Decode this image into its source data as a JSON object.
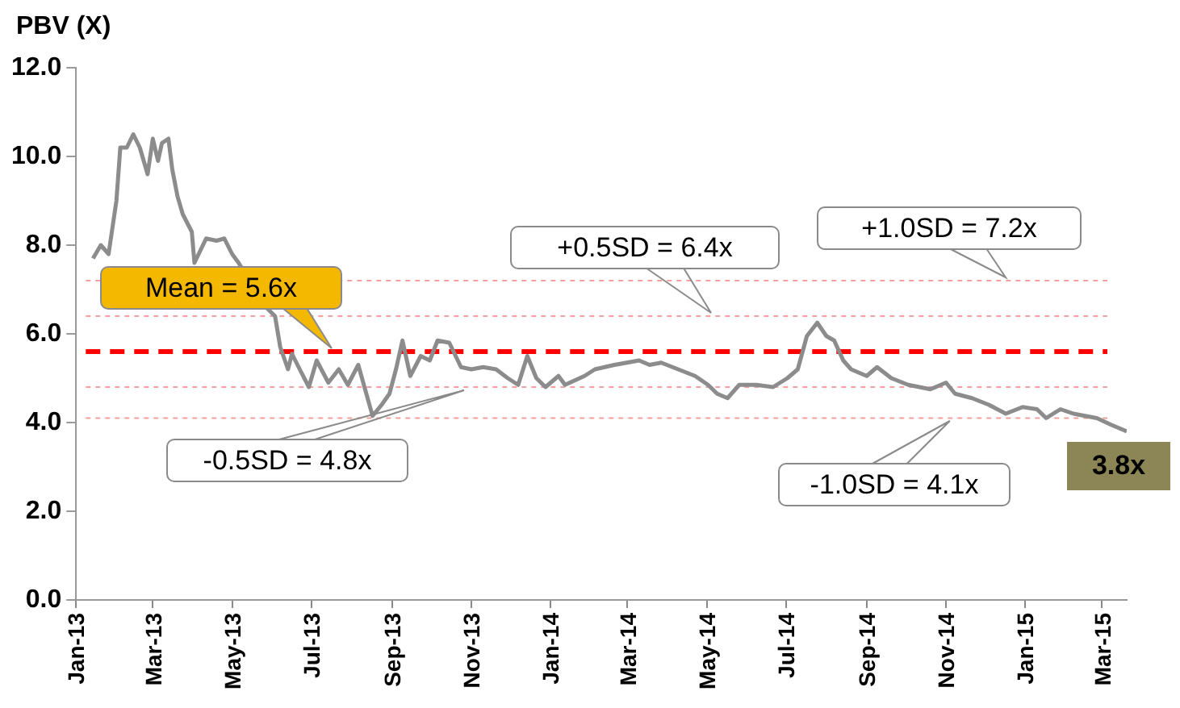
{
  "chart_data": {
    "type": "line",
    "ylabel": "PBV (X)",
    "x": [
      "2013-01-14",
      "2013-01-20",
      "2013-01-26",
      "2013-02-01",
      "2013-02-04",
      "2013-02-09",
      "2013-02-14",
      "2013-02-19",
      "2013-02-25",
      "2013-03-01",
      "2013-03-05",
      "2013-03-08",
      "2013-03-13",
      "2013-03-16",
      "2013-03-20",
      "2013-03-24",
      "2013-03-31",
      "2013-04-02",
      "2013-04-11",
      "2013-04-19",
      "2013-04-25",
      "2013-05-01",
      "2013-05-06",
      "2013-05-27",
      "2013-06-03",
      "2013-06-07",
      "2013-06-13",
      "2013-06-16",
      "2013-06-22",
      "2013-06-29",
      "2013-07-05",
      "2013-07-14",
      "2013-07-22",
      "2013-07-29",
      "2013-08-06",
      "2013-08-17",
      "2013-08-24",
      "2013-08-30",
      "2013-09-04",
      "2013-09-09",
      "2013-09-15",
      "2013-09-23",
      "2013-09-30",
      "2013-10-06",
      "2013-10-15",
      "2013-10-24",
      "2013-11-01",
      "2013-11-10",
      "2013-11-20",
      "2013-11-29",
      "2013-12-07",
      "2013-12-14",
      "2013-12-21",
      "2013-12-28",
      "2014-01-07",
      "2014-01-12",
      "2014-01-27",
      "2014-02-04",
      "2014-02-19",
      "2014-03-10",
      "2014-03-18",
      "2014-03-27",
      "2014-04-09",
      "2014-04-22",
      "2014-05-02",
      "2014-05-09",
      "2014-05-17",
      "2014-05-26",
      "2014-06-08",
      "2014-06-21",
      "2014-07-02",
      "2014-07-10",
      "2014-07-17",
      "2014-07-25",
      "2014-08-01",
      "2014-08-07",
      "2014-08-14",
      "2014-08-20",
      "2014-09-01",
      "2014-09-09",
      "2014-09-20",
      "2014-10-03",
      "2014-10-20",
      "2014-11-01",
      "2014-11-08",
      "2014-11-21",
      "2014-12-04",
      "2014-12-17",
      "2014-12-30",
      "2015-01-10",
      "2015-01-17",
      "2015-01-28",
      "2015-02-07",
      "2015-02-25",
      "2015-03-08",
      "2015-03-20"
    ],
    "series": [
      {
        "color": "#8c8c8c",
        "values": [
          7.7,
          8.0,
          7.8,
          9.0,
          10.2,
          10.2,
          10.5,
          10.2,
          9.6,
          10.4,
          9.9,
          10.3,
          10.4,
          9.7,
          9.1,
          8.7,
          8.3,
          7.6,
          8.15,
          8.1,
          8.15,
          7.8,
          7.6,
          6.6,
          6.4,
          5.7,
          5.2,
          5.55,
          5.2,
          4.8,
          5.4,
          4.9,
          5.2,
          4.85,
          5.3,
          4.15,
          4.4,
          4.65,
          5.2,
          5.85,
          5.05,
          5.5,
          5.4,
          5.85,
          5.8,
          5.25,
          5.2,
          5.25,
          5.2,
          5.0,
          4.85,
          5.5,
          5.0,
          4.8,
          5.05,
          4.85,
          5.05,
          5.2,
          5.3,
          5.4,
          5.3,
          5.35,
          5.2,
          5.05,
          4.85,
          4.65,
          4.55,
          4.85,
          4.85,
          4.8,
          5.0,
          5.2,
          5.95,
          6.25,
          5.95,
          5.85,
          5.4,
          5.2,
          5.05,
          5.25,
          5.0,
          4.85,
          4.75,
          4.9,
          4.65,
          4.55,
          4.4,
          4.2,
          4.35,
          4.3,
          4.1,
          4.3,
          4.2,
          4.1,
          3.95,
          3.8
        ]
      }
    ],
    "xlim": [
      "2013-01-01",
      "2015-03-20"
    ],
    "xticks": [
      {
        "value": "2013-01-01",
        "label": "Jan-13"
      },
      {
        "value": "2013-03-01",
        "label": "Mar-13"
      },
      {
        "value": "2013-05-01",
        "label": "May-13"
      },
      {
        "value": "2013-07-01",
        "label": "Jul-13"
      },
      {
        "value": "2013-09-01",
        "label": "Sep-13"
      },
      {
        "value": "2013-11-01",
        "label": "Nov-13"
      },
      {
        "value": "2014-01-01",
        "label": "Jan-14"
      },
      {
        "value": "2014-03-01",
        "label": "Mar-14"
      },
      {
        "value": "2014-05-01",
        "label": "May-14"
      },
      {
        "value": "2014-07-01",
        "label": "Jul-14"
      },
      {
        "value": "2014-09-01",
        "label": "Sep-14"
      },
      {
        "value": "2014-11-01",
        "label": "Nov-14"
      },
      {
        "value": "2015-01-01",
        "label": "Jan-15"
      },
      {
        "value": "2015-03-01",
        "label": "Mar-15"
      }
    ],
    "ylim": [
      0,
      12
    ],
    "yticks": [
      {
        "value": 0,
        "label": "0.0"
      },
      {
        "value": 2,
        "label": "2.0"
      },
      {
        "value": 4,
        "label": "4.0"
      },
      {
        "value": 6,
        "label": "6.0"
      },
      {
        "value": 8,
        "label": "8.0"
      },
      {
        "value": 10,
        "label": "10.0"
      },
      {
        "value": 12,
        "label": "12.0"
      }
    ],
    "ref_lines": [
      {
        "axis": "y",
        "value": 5.6,
        "label": "Mean = 5.6x",
        "color": "#ff0000",
        "line_style": "dashed"
      },
      {
        "axis": "y",
        "value": 6.4,
        "label": "+0.5SD = 6.4x",
        "color": "#f4a0a0",
        "line_style": "dotted"
      },
      {
        "axis": "y",
        "value": 7.2,
        "label": "+1.0SD = 7.2x",
        "color": "#f4a0a0",
        "line_style": "dotted"
      },
      {
        "axis": "y",
        "value": 4.8,
        "label": "-0.5SD = 4.8x",
        "color": "#f4a0a0",
        "line_style": "dotted"
      },
      {
        "axis": "y",
        "value": 4.1,
        "label": "-1.0SD = 4.1x",
        "color": "#f4a0a0",
        "line_style": "dotted"
      }
    ],
    "annotations": [
      {
        "text": "3.8x",
        "x": "2015-03-20",
        "y": 3.8
      }
    ],
    "grid": false,
    "legend": false,
    "marker": "none",
    "line_style": "solid"
  }
}
